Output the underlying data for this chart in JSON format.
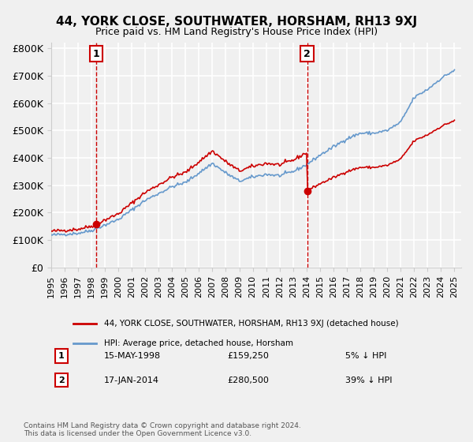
{
  "title": "44, YORK CLOSE, SOUTHWATER, HORSHAM, RH13 9XJ",
  "subtitle": "Price paid vs. HM Land Registry's House Price Index (HPI)",
  "ylabel_ticks": [
    "£0",
    "£100K",
    "£200K",
    "£300K",
    "£400K",
    "£500K",
    "£600K",
    "£700K",
    "£800K"
  ],
  "ytick_values": [
    0,
    100000,
    200000,
    300000,
    400000,
    500000,
    600000,
    700000,
    800000
  ],
  "ylim": [
    0,
    820000
  ],
  "xlim_start": 1995.0,
  "xlim_end": 2025.5,
  "purchase1": {
    "date_label": "15-MAY-1998",
    "date_x": 1998.37,
    "price": 159250,
    "label": "1",
    "info": "5% ↓ HPI"
  },
  "purchase2": {
    "date_label": "17-JAN-2014",
    "date_x": 2014.04,
    "price": 280500,
    "label": "2",
    "info": "39% ↓ HPI"
  },
  "legend_property": "44, YORK CLOSE, SOUTHWATER, HORSHAM, RH13 9XJ (detached house)",
  "legend_hpi": "HPI: Average price, detached house, Horsham",
  "footer": "Contains HM Land Registry data © Crown copyright and database right 2024.\nThis data is licensed under the Open Government Licence v3.0.",
  "line_color_property": "#cc0000",
  "line_color_hpi": "#6699cc",
  "marker_color": "#cc0000",
  "vline_color": "#cc0000",
  "bg_color": "#f0f0f0",
  "grid_color": "#ffffff",
  "xticks": [
    1995,
    1996,
    1997,
    1998,
    1999,
    2000,
    2001,
    2002,
    2003,
    2004,
    2005,
    2006,
    2007,
    2008,
    2009,
    2010,
    2011,
    2012,
    2013,
    2014,
    2015,
    2016,
    2017,
    2018,
    2019,
    2020,
    2021,
    2022,
    2023,
    2024,
    2025
  ]
}
